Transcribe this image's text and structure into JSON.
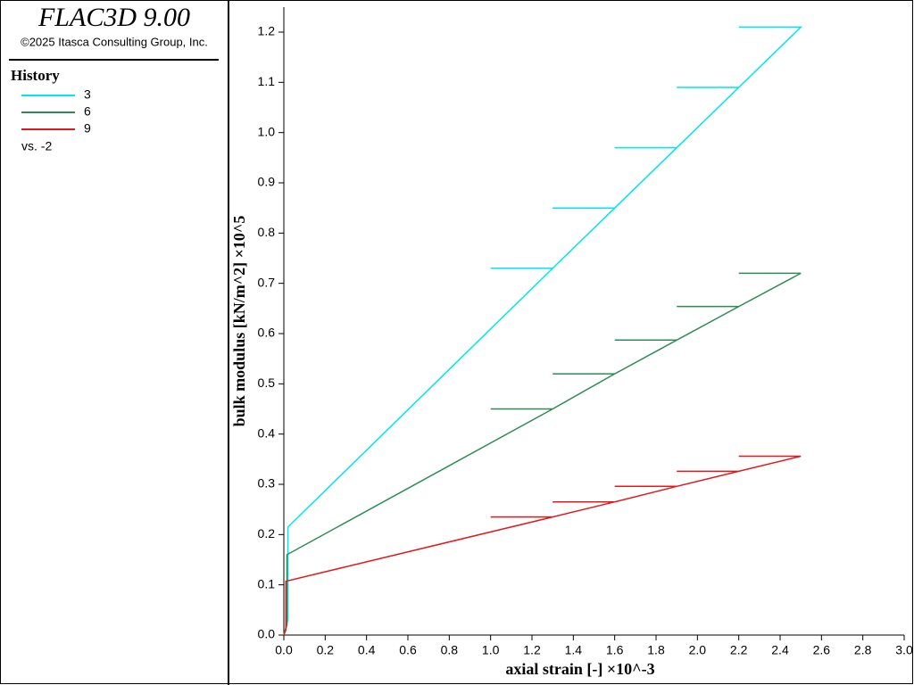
{
  "header": {
    "title": "FLAC3D 9.00",
    "copyright": "©2025 Itasca Consulting Group, Inc."
  },
  "chart_data": {
    "type": "line",
    "legend_title": "History",
    "legend_note": "vs. -2",
    "x_label": "axial strain [-] ×10^-3",
    "y_label": "bulk modulus [kN/m^2] ×10^5",
    "xlim": [
      0,
      3
    ],
    "ylim": [
      0,
      1.25
    ],
    "xticks": [
      {
        "value": 0,
        "label": "0.0"
      },
      0.2,
      0.4,
      0.6,
      0.8,
      {
        "value": 1,
        "label": "1.0"
      },
      1.2,
      1.4,
      1.6,
      1.8,
      {
        "value": 2,
        "label": "2.0"
      },
      2.2,
      2.4,
      2.6,
      2.8,
      {
        "value": 3,
        "label": "3.0"
      }
    ],
    "yticks": [
      {
        "value": 0,
        "label": "0.0"
      },
      0.1,
      0.2,
      0.3,
      0.4,
      0.5,
      0.6,
      0.7,
      0.8,
      0.9,
      {
        "value": 1,
        "label": "1.0"
      },
      1.1,
      1.2
    ],
    "series": [
      {
        "name": "3",
        "color": "#00e5ee",
        "x": [
          0,
          0.02,
          0.02,
          1.3,
          1.0,
          1.3,
          1.6,
          1.3,
          1.6,
          1.9,
          1.6,
          1.9,
          2.2,
          1.9,
          2.2,
          2.5,
          2.2,
          2.5
        ],
        "values": [
          0,
          0.03,
          0.215,
          0.73,
          0.73,
          0.73,
          0.85,
          0.85,
          0.85,
          0.97,
          0.97,
          0.97,
          1.09,
          1.09,
          1.09,
          1.21,
          1.21,
          1.21
        ]
      },
      {
        "name": "6",
        "color": "#2e8b57",
        "x": [
          0,
          0.015,
          0.015,
          1.3,
          1.0,
          1.3,
          1.6,
          1.3,
          1.6,
          1.9,
          1.6,
          1.9,
          2.2,
          1.9,
          2.2,
          2.5,
          2.2,
          2.5
        ],
        "values": [
          0,
          0.02,
          0.16,
          0.45,
          0.45,
          0.45,
          0.52,
          0.52,
          0.52,
          0.587,
          0.587,
          0.587,
          0.654,
          0.654,
          0.654,
          0.72,
          0.72,
          0.72
        ]
      },
      {
        "name": "9",
        "color": "#e0191e",
        "x": [
          0,
          0.01,
          0.01,
          1.3,
          1.0,
          1.3,
          1.6,
          1.3,
          1.6,
          1.9,
          1.6,
          1.9,
          2.2,
          1.9,
          2.2,
          2.5,
          2.2,
          2.5
        ],
        "values": [
          0,
          0.01,
          0.107,
          0.235,
          0.235,
          0.235,
          0.265,
          0.265,
          0.265,
          0.296,
          0.296,
          0.296,
          0.326,
          0.326,
          0.326,
          0.356,
          0.356,
          0.356
        ]
      }
    ]
  }
}
